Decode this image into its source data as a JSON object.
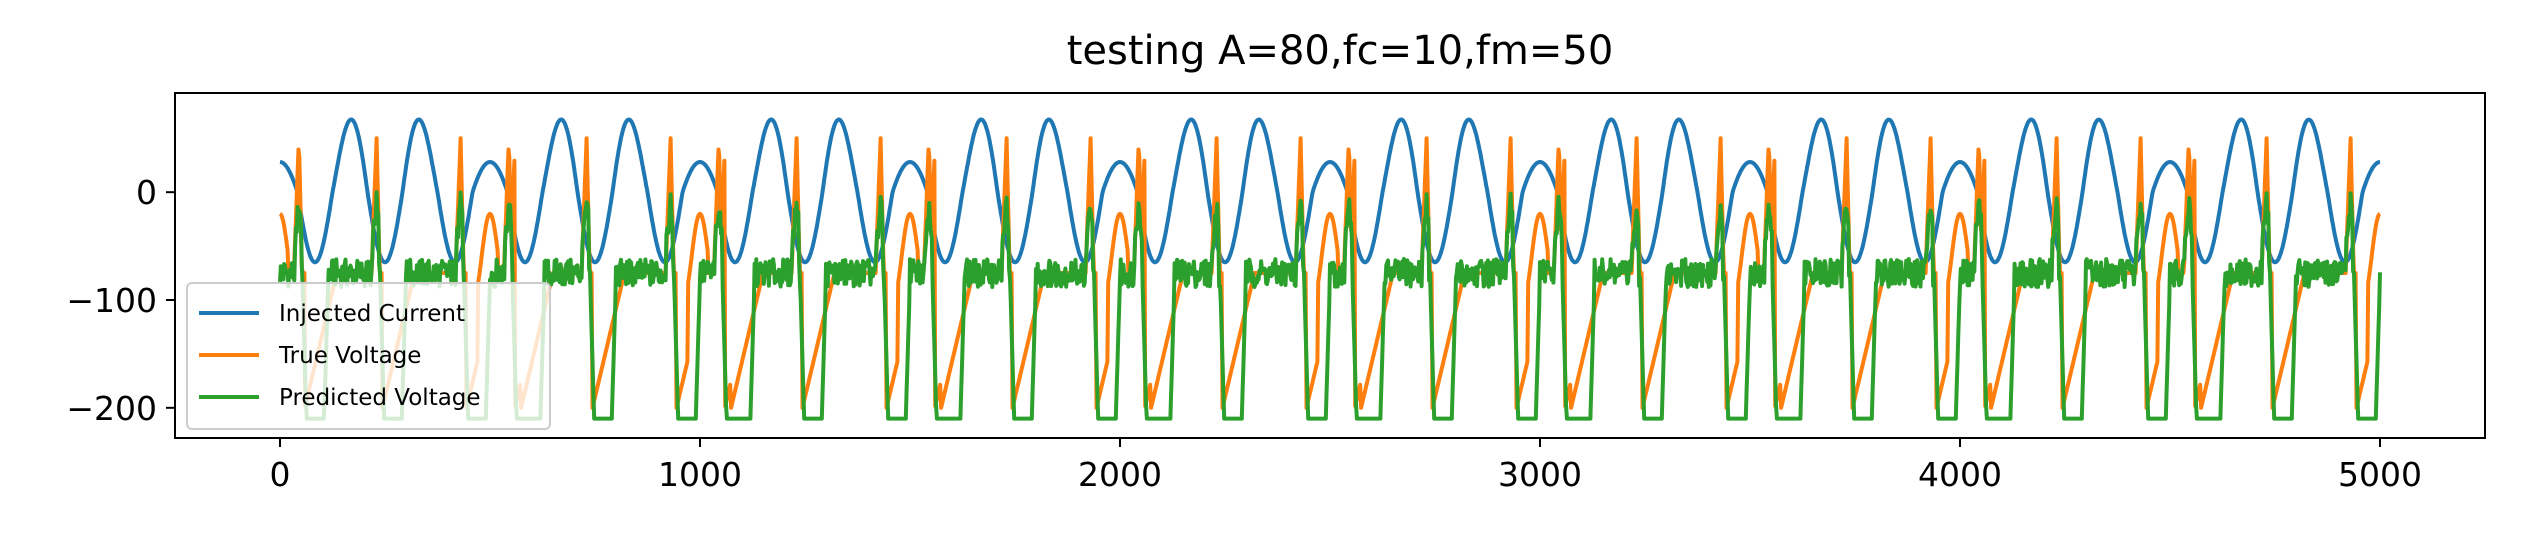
{
  "chart_data": {
    "type": "line",
    "title": "testing A=80,fc=10,fm=50",
    "xlabel": "",
    "ylabel": "",
    "xlim": [
      -250,
      5250
    ],
    "ylim": [
      -228,
      92
    ],
    "x_ticks": [
      0,
      1000,
      2000,
      3000,
      4000,
      5000
    ],
    "x_tick_labels": [
      "0",
      "1000",
      "2000",
      "3000",
      "4000",
      "5000"
    ],
    "y_ticks": [
      0,
      -100,
      -200
    ],
    "y_tick_labels": [
      "0",
      "−100",
      "−200"
    ],
    "grid": false,
    "legend_position": "lower-left",
    "x_range": [
      0,
      5000
    ],
    "sample_step": 2,
    "series": [
      {
        "name": "Injected Current",
        "color": "#1f77b4",
        "description_model": "A/2*(sin(fc*t)+sin(fm*t)) style beat, peak ~80, min ~-65, period 500"
      },
      {
        "name": "True Voltage",
        "color": "#ff7f0e"
      },
      {
        "name": "Predicted Voltage",
        "color": "#2ca02c"
      }
    ]
  }
}
